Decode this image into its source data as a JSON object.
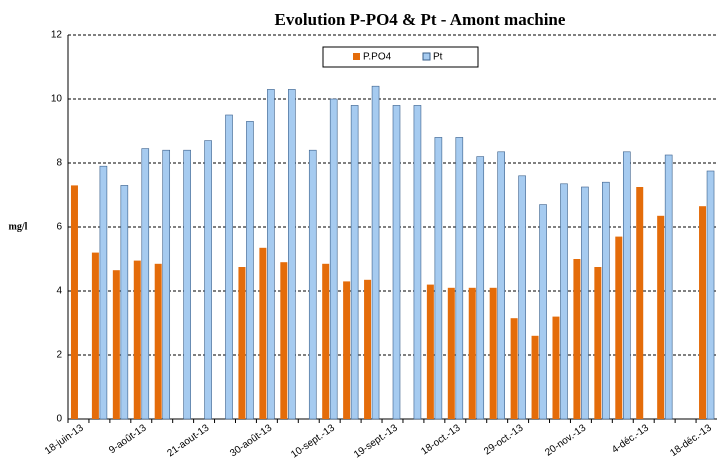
{
  "chart_data": {
    "type": "bar",
    "title": "Evolution P-PO4 & Pt - Amont machine",
    "y_label": "mg/l",
    "categories": [
      "18-juin-13",
      null,
      null,
      "9-août-13",
      null,
      null,
      "21-aout-13",
      null,
      null,
      "30-août-13",
      null,
      null,
      "10-sept.-13",
      null,
      null,
      "19-sept.-13",
      null,
      null,
      "18-oct.-13",
      null,
      null,
      "29-oct.-13",
      null,
      null,
      "20-nov.-13",
      null,
      null,
      "4-déc.-13",
      null,
      null,
      "18-déc.-13"
    ],
    "series": [
      {
        "name": "P.PO4",
        "color": "#e46c0a",
        "values": [
          7.3,
          5.2,
          4.65,
          4.95,
          4.85,
          null,
          null,
          null,
          4.75,
          5.35,
          4.9,
          null,
          4.85,
          4.3,
          4.35,
          null,
          null,
          4.2,
          4.1,
          4.1,
          4.1,
          3.15,
          2.6,
          3.2,
          5.0,
          4.75,
          5.7,
          7.25,
          6.35,
          null,
          6.65
        ]
      },
      {
        "name": "Pt",
        "color": "#a6cbf0",
        "values": [
          null,
          7.9,
          7.3,
          8.45,
          8.4,
          8.4,
          8.7,
          9.5,
          9.3,
          10.3,
          10.3,
          8.4,
          10.0,
          9.8,
          10.4,
          9.8,
          9.8,
          8.8,
          8.8,
          8.2,
          8.35,
          7.6,
          6.7,
          7.35,
          7.25,
          7.4,
          8.35,
          null,
          8.25,
          null,
          7.75
        ]
      }
    ],
    "ylim": [
      0,
      12
    ],
    "yticks": [
      0,
      2,
      4,
      6,
      8,
      10,
      12
    ],
    "grid": true,
    "legend": "top"
  }
}
